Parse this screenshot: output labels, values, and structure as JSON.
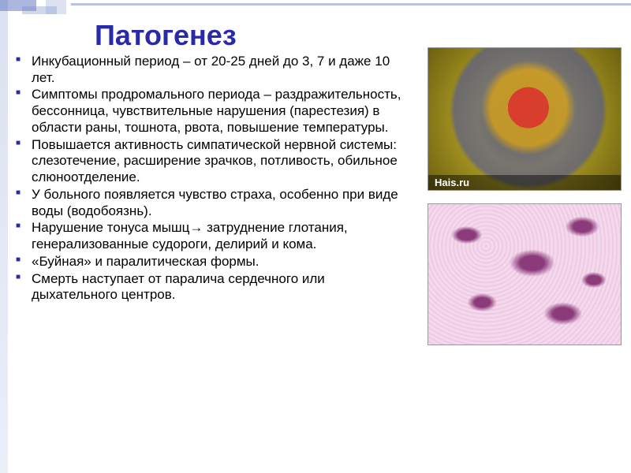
{
  "title": {
    "text": "Патогенез",
    "fontsize": 36,
    "color": "#2a2aa8"
  },
  "bullets": {
    "fontsize": 17,
    "items": [
      "Инкубационный период –  от 20-25 дней до  3, 7 и даже 10 лет.",
      "Симптомы продромального периода – раздражительность, бессонница, чувствительные нарушения (парестезия) в области раны, тошнота, рвота, повышение температуры.",
      "Повышается активность симпатической нервной системы: слезотечение, расширение зрачков, потливость, обильное слюноотделение.",
      "У больного появляется чувство страха, особенно при виде воды (водобоязнь).",
      "Нарушение тонуса мышц→ затруднение глотания, генерализованные судороги, делирий и кома.",
      "«Буйная» и паралитическая формы.",
      "Смерть наступает от паралича сердечного или дыхательного центров."
    ]
  },
  "figures": {
    "fig1": {
      "type": "micrograph",
      "description": "virus-particle-colorized",
      "watermark": "Hais.ru",
      "palette": {
        "outer": "#b6a326",
        "halo": "#4a55a6",
        "core": "#d84a2c"
      }
    },
    "fig2": {
      "type": "histology",
      "description": "negri-bodies-he-stain",
      "palette": {
        "background": "#f0cfe7",
        "bodies": "#8b3a7a"
      }
    }
  },
  "decoration": {
    "accent_color": "#2a2aa8",
    "line_color": "#b9c2e6"
  }
}
